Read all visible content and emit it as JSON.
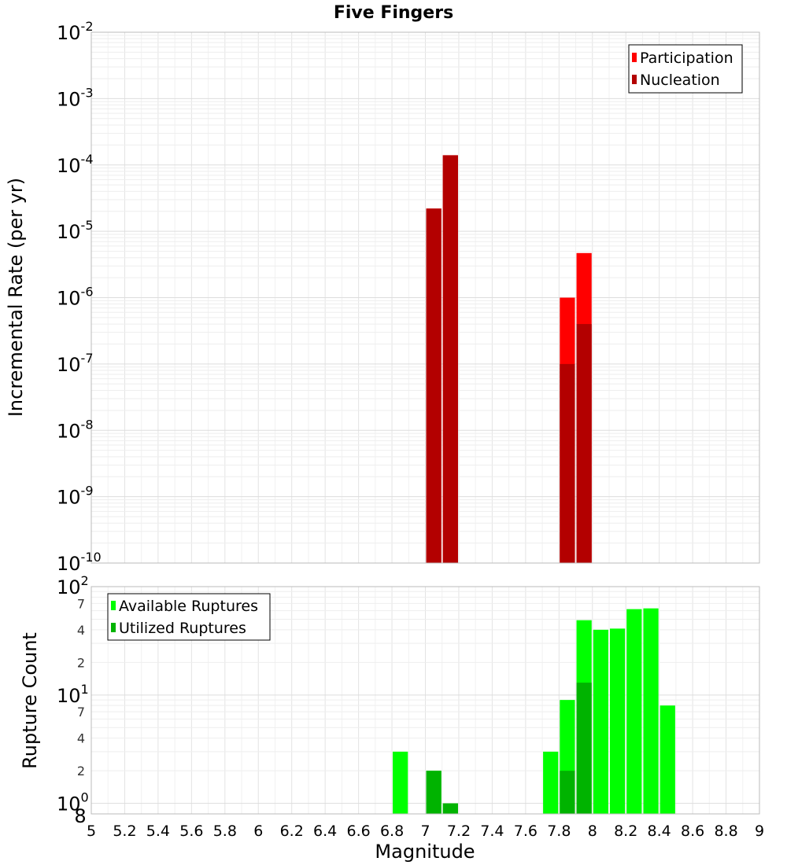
{
  "chart_data": [
    {
      "type": "bar",
      "title": "Five Fingers",
      "xlabel": "",
      "ylabel": "Incremental Rate (per yr)",
      "xlim": [
        5,
        9
      ],
      "ylim": [
        1e-10,
        0.01
      ],
      "yscale": "log",
      "bar_width": 0.1,
      "grid": true,
      "legend_position": "top-right",
      "y_tick_labels": [
        {
          "base": "10",
          "exp": "-10"
        },
        {
          "base": "10",
          "exp": "-9"
        },
        {
          "base": "10",
          "exp": "-8"
        },
        {
          "base": "10",
          "exp": "-7"
        },
        {
          "base": "10",
          "exp": "-6"
        },
        {
          "base": "10",
          "exp": "-5"
        },
        {
          "base": "10",
          "exp": "-4"
        },
        {
          "base": "10",
          "exp": "-3"
        },
        {
          "base": "10",
          "exp": "-2"
        }
      ],
      "series": [
        {
          "name": "Participation",
          "color": "#ff0000",
          "x": [
            7.05,
            7.15,
            7.85,
            7.95
          ],
          "values": [
            2.2e-05,
            0.00014,
            1e-06,
            4.7e-06
          ]
        },
        {
          "name": "Nucleation",
          "color": "#b30000",
          "x": [
            7.05,
            7.15,
            7.85,
            7.95
          ],
          "values": [
            2.2e-05,
            0.00014,
            1e-07,
            4e-07
          ]
        }
      ]
    },
    {
      "type": "bar",
      "title": "",
      "xlabel": "Magnitude",
      "ylabel": "Rupture Count",
      "xlim": [
        5,
        9
      ],
      "ylim": [
        0.8,
        100
      ],
      "yscale": "log",
      "bar_width": 0.1,
      "grid": true,
      "legend_position": "top-left",
      "x_ticks": [
        "5",
        "5.2",
        "5.4",
        "5.6",
        "5.8",
        "6",
        "6.2",
        "6.4",
        "6.6",
        "6.8",
        "7",
        "7.2",
        "7.4",
        "7.6",
        "7.8",
        "8",
        "8.2",
        "8.4",
        "8.6",
        "8.8",
        "9"
      ],
      "y_tick_labels": [
        {
          "base": "10",
          "exp": "0"
        },
        {
          "base": "10",
          "exp": "1"
        },
        {
          "base": "10",
          "exp": "2"
        }
      ],
      "y_bottom_label": "8",
      "y_minor_ticks": [
        {
          "value": 2,
          "label": "2"
        },
        {
          "value": 4,
          "label": "4"
        },
        {
          "value": 7,
          "label": "7"
        },
        {
          "value": 20,
          "label": "2"
        },
        {
          "value": 40,
          "label": "4"
        },
        {
          "value": 70,
          "label": "7"
        }
      ],
      "series": [
        {
          "name": "Available Ruptures",
          "color": "#00ff00",
          "x": [
            6.85,
            7.05,
            7.15,
            7.75,
            7.85,
            7.95,
            8.05,
            8.15,
            8.25,
            8.35,
            8.45
          ],
          "values": [
            3,
            2,
            1,
            3,
            9,
            49,
            40,
            41,
            62,
            63,
            8
          ]
        },
        {
          "name": "Utilized Ruptures",
          "color": "#00b300",
          "x": [
            7.05,
            7.15,
            7.85,
            7.95
          ],
          "values": [
            2,
            1,
            2,
            13
          ]
        }
      ]
    }
  ]
}
